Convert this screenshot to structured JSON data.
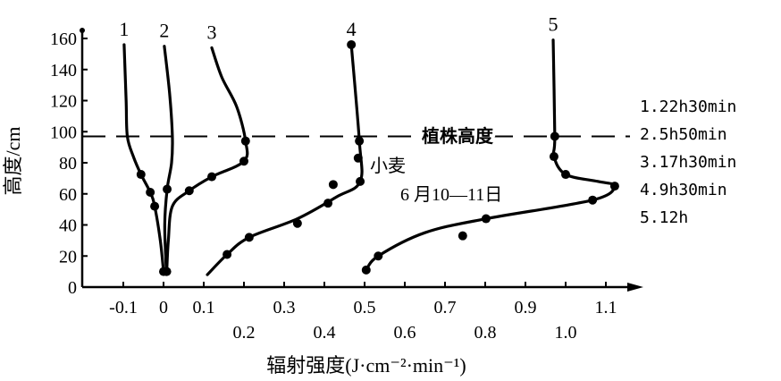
{
  "chart_data": {
    "type": "line",
    "title": "",
    "xlabel": "辐射强度(J·cm⁻²·min⁻¹)",
    "ylabel": "高度/cm",
    "xlim": [
      -0.15,
      1.18
    ],
    "ylim": [
      0,
      165
    ],
    "grid": false,
    "x_ticks_row1": [
      "-0.1",
      "0",
      "0.1",
      "0.3",
      "0.5",
      "0.7",
      "0.9",
      "1.1"
    ],
    "x_ticks_row1_values": [
      -0.1,
      0,
      0.1,
      0.3,
      0.5,
      0.7,
      0.9,
      1.1
    ],
    "x_ticks_row2": [
      "0.2",
      "0.4",
      "0.6",
      "0.8",
      "1.0"
    ],
    "x_ticks_row2_values": [
      0.2,
      0.4,
      0.6,
      0.8,
      1.0
    ],
    "y_ticks": [
      0,
      20,
      40,
      60,
      80,
      100,
      120,
      140,
      160
    ],
    "plant_height": {
      "value": 97,
      "label": "植株高度"
    },
    "annotations": {
      "crop": "小麦",
      "date": "6 月10—11日"
    },
    "legend": [
      "1.22h30min",
      "2.5h50min",
      "3.17h30min",
      "4.9h30min",
      "5.12h"
    ],
    "series": [
      {
        "name": "1",
        "line": [
          [
            -0.098,
            156
          ],
          [
            -0.093,
            120
          ],
          [
            -0.09,
            97
          ],
          [
            -0.075,
            84
          ],
          [
            -0.056,
            72.5
          ],
          [
            -0.033,
            61
          ],
          [
            -0.022,
            52
          ],
          [
            -0.008,
            30
          ],
          [
            0,
            10
          ]
        ],
        "markers": [
          [
            -0.056,
            72.5
          ],
          [
            -0.033,
            61
          ],
          [
            -0.022,
            52
          ],
          [
            0,
            10
          ]
        ]
      },
      {
        "name": "2",
        "line": [
          [
            0.002,
            155
          ],
          [
            0.015,
            125
          ],
          [
            0.022,
            97
          ],
          [
            0.02,
            80
          ],
          [
            0.009,
            63
          ],
          [
            0.003,
            40
          ],
          [
            0.007,
            10
          ]
        ],
        "markers": [
          [
            0.009,
            63
          ],
          [
            0.007,
            10
          ]
        ]
      },
      {
        "name": "3",
        "line": [
          [
            0.12,
            154
          ],
          [
            0.145,
            135
          ],
          [
            0.182,
            116
          ],
          [
            0.204,
            94
          ],
          [
            0.2,
            81
          ],
          [
            0.12,
            71
          ],
          [
            0.064,
            62
          ],
          [
            0.022,
            52
          ],
          [
            0.012,
            30
          ],
          [
            0.008,
            10
          ]
        ],
        "markers": [
          [
            0.204,
            94
          ],
          [
            0.2,
            81
          ],
          [
            0.12,
            71
          ],
          [
            0.064,
            62
          ],
          [
            0.008,
            10
          ]
        ]
      },
      {
        "name": "4",
        "line": [
          [
            0.467,
            156
          ],
          [
            0.487,
            94
          ],
          [
            0.489,
            68
          ],
          [
            0.43,
            58
          ],
          [
            0.333,
            44
          ],
          [
            0.213,
            32
          ],
          [
            0.158,
            21
          ],
          [
            0.109,
            8
          ]
        ],
        "markers": [
          [
            0.467,
            156
          ],
          [
            0.487,
            94
          ],
          [
            0.484,
            83
          ],
          [
            0.489,
            68
          ],
          [
            0.422,
            66
          ],
          [
            0.409,
            54
          ],
          [
            0.333,
            41
          ],
          [
            0.213,
            32
          ],
          [
            0.158,
            21
          ]
        ]
      },
      {
        "name": "5",
        "line": [
          [
            0.969,
            159
          ],
          [
            0.973,
            97
          ],
          [
            0.971,
            84
          ],
          [
            1.0,
            72.5
          ],
          [
            1.08,
            68
          ],
          [
            1.122,
            65
          ],
          [
            1.067,
            56
          ],
          [
            0.802,
            44
          ],
          [
            0.65,
            35
          ],
          [
            0.534,
            20
          ],
          [
            0.504,
            11
          ]
        ],
        "markers": [
          [
            0.973,
            97
          ],
          [
            0.971,
            84
          ],
          [
            1.0,
            72.5
          ],
          [
            1.122,
            65
          ],
          [
            1.067,
            56
          ],
          [
            0.802,
            44
          ],
          [
            0.744,
            33
          ],
          [
            0.534,
            20
          ],
          [
            0.504,
            11
          ]
        ]
      }
    ]
  }
}
